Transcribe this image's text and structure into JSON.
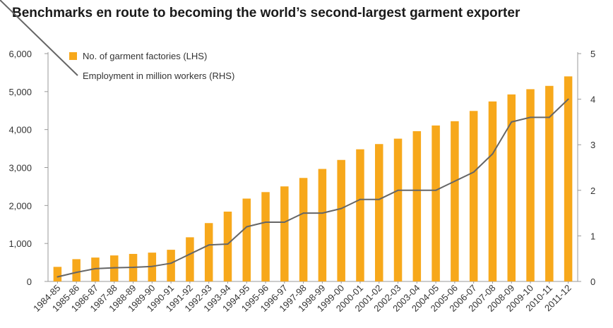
{
  "chart_data": {
    "type": "bar",
    "title": "Benchmarks en route to becoming the world’s second-largest garment exporter",
    "categories": [
      "1984-85",
      "1985-86",
      "1986-87",
      "1987-88",
      "1988-89",
      "1989-90",
      "1990-91",
      "1991-92",
      "1992-93",
      "1993-94",
      "1994-95",
      "1995-96",
      "1996-97",
      "1997-98",
      "1998-99",
      "1999-00",
      "2000-01",
      "2001-02",
      "2002-03",
      "2003-04",
      "2004-05",
      "2005-06",
      "2006-07",
      "2007-08",
      "2008-09",
      "2009-10",
      "2010-11",
      "2011-12"
    ],
    "series": [
      {
        "name": "No. of garment factories (LHS)",
        "type": "bar",
        "axis": "left",
        "color": "#F7A81B",
        "values": [
          384,
          587,
          629,
          685,
          725,
          759,
          834,
          1163,
          1537,
          1839,
          2182,
          2353,
          2503,
          2726,
          2963,
          3200,
          3480,
          3618,
          3760,
          3957,
          4107,
          4220,
          4490,
          4740,
          4925,
          5063,
          5150,
          5400
        ]
      },
      {
        "name": "Employment in million workers (RHS)",
        "type": "line",
        "axis": "right",
        "color": "#666666",
        "values": [
          0.1,
          0.2,
          0.28,
          0.3,
          0.31,
          0.33,
          0.4,
          0.6,
          0.8,
          0.82,
          1.2,
          1.3,
          1.3,
          1.5,
          1.5,
          1.6,
          1.8,
          1.8,
          2.0,
          2.0,
          2.0,
          2.2,
          2.4,
          2.8,
          3.5,
          3.6,
          3.6,
          4.0
        ]
      }
    ],
    "ylim_left": [
      0,
      6000
    ],
    "ylim_right": [
      0,
      5
    ],
    "yticks_left": [
      "0",
      "1,000",
      "2,000",
      "3,000",
      "4,000",
      "5,000",
      "6,000"
    ],
    "yticks_right": [
      "0",
      "1",
      "2",
      "3",
      "4",
      "5"
    ],
    "legend_position": "top-left",
    "grid": false
  }
}
